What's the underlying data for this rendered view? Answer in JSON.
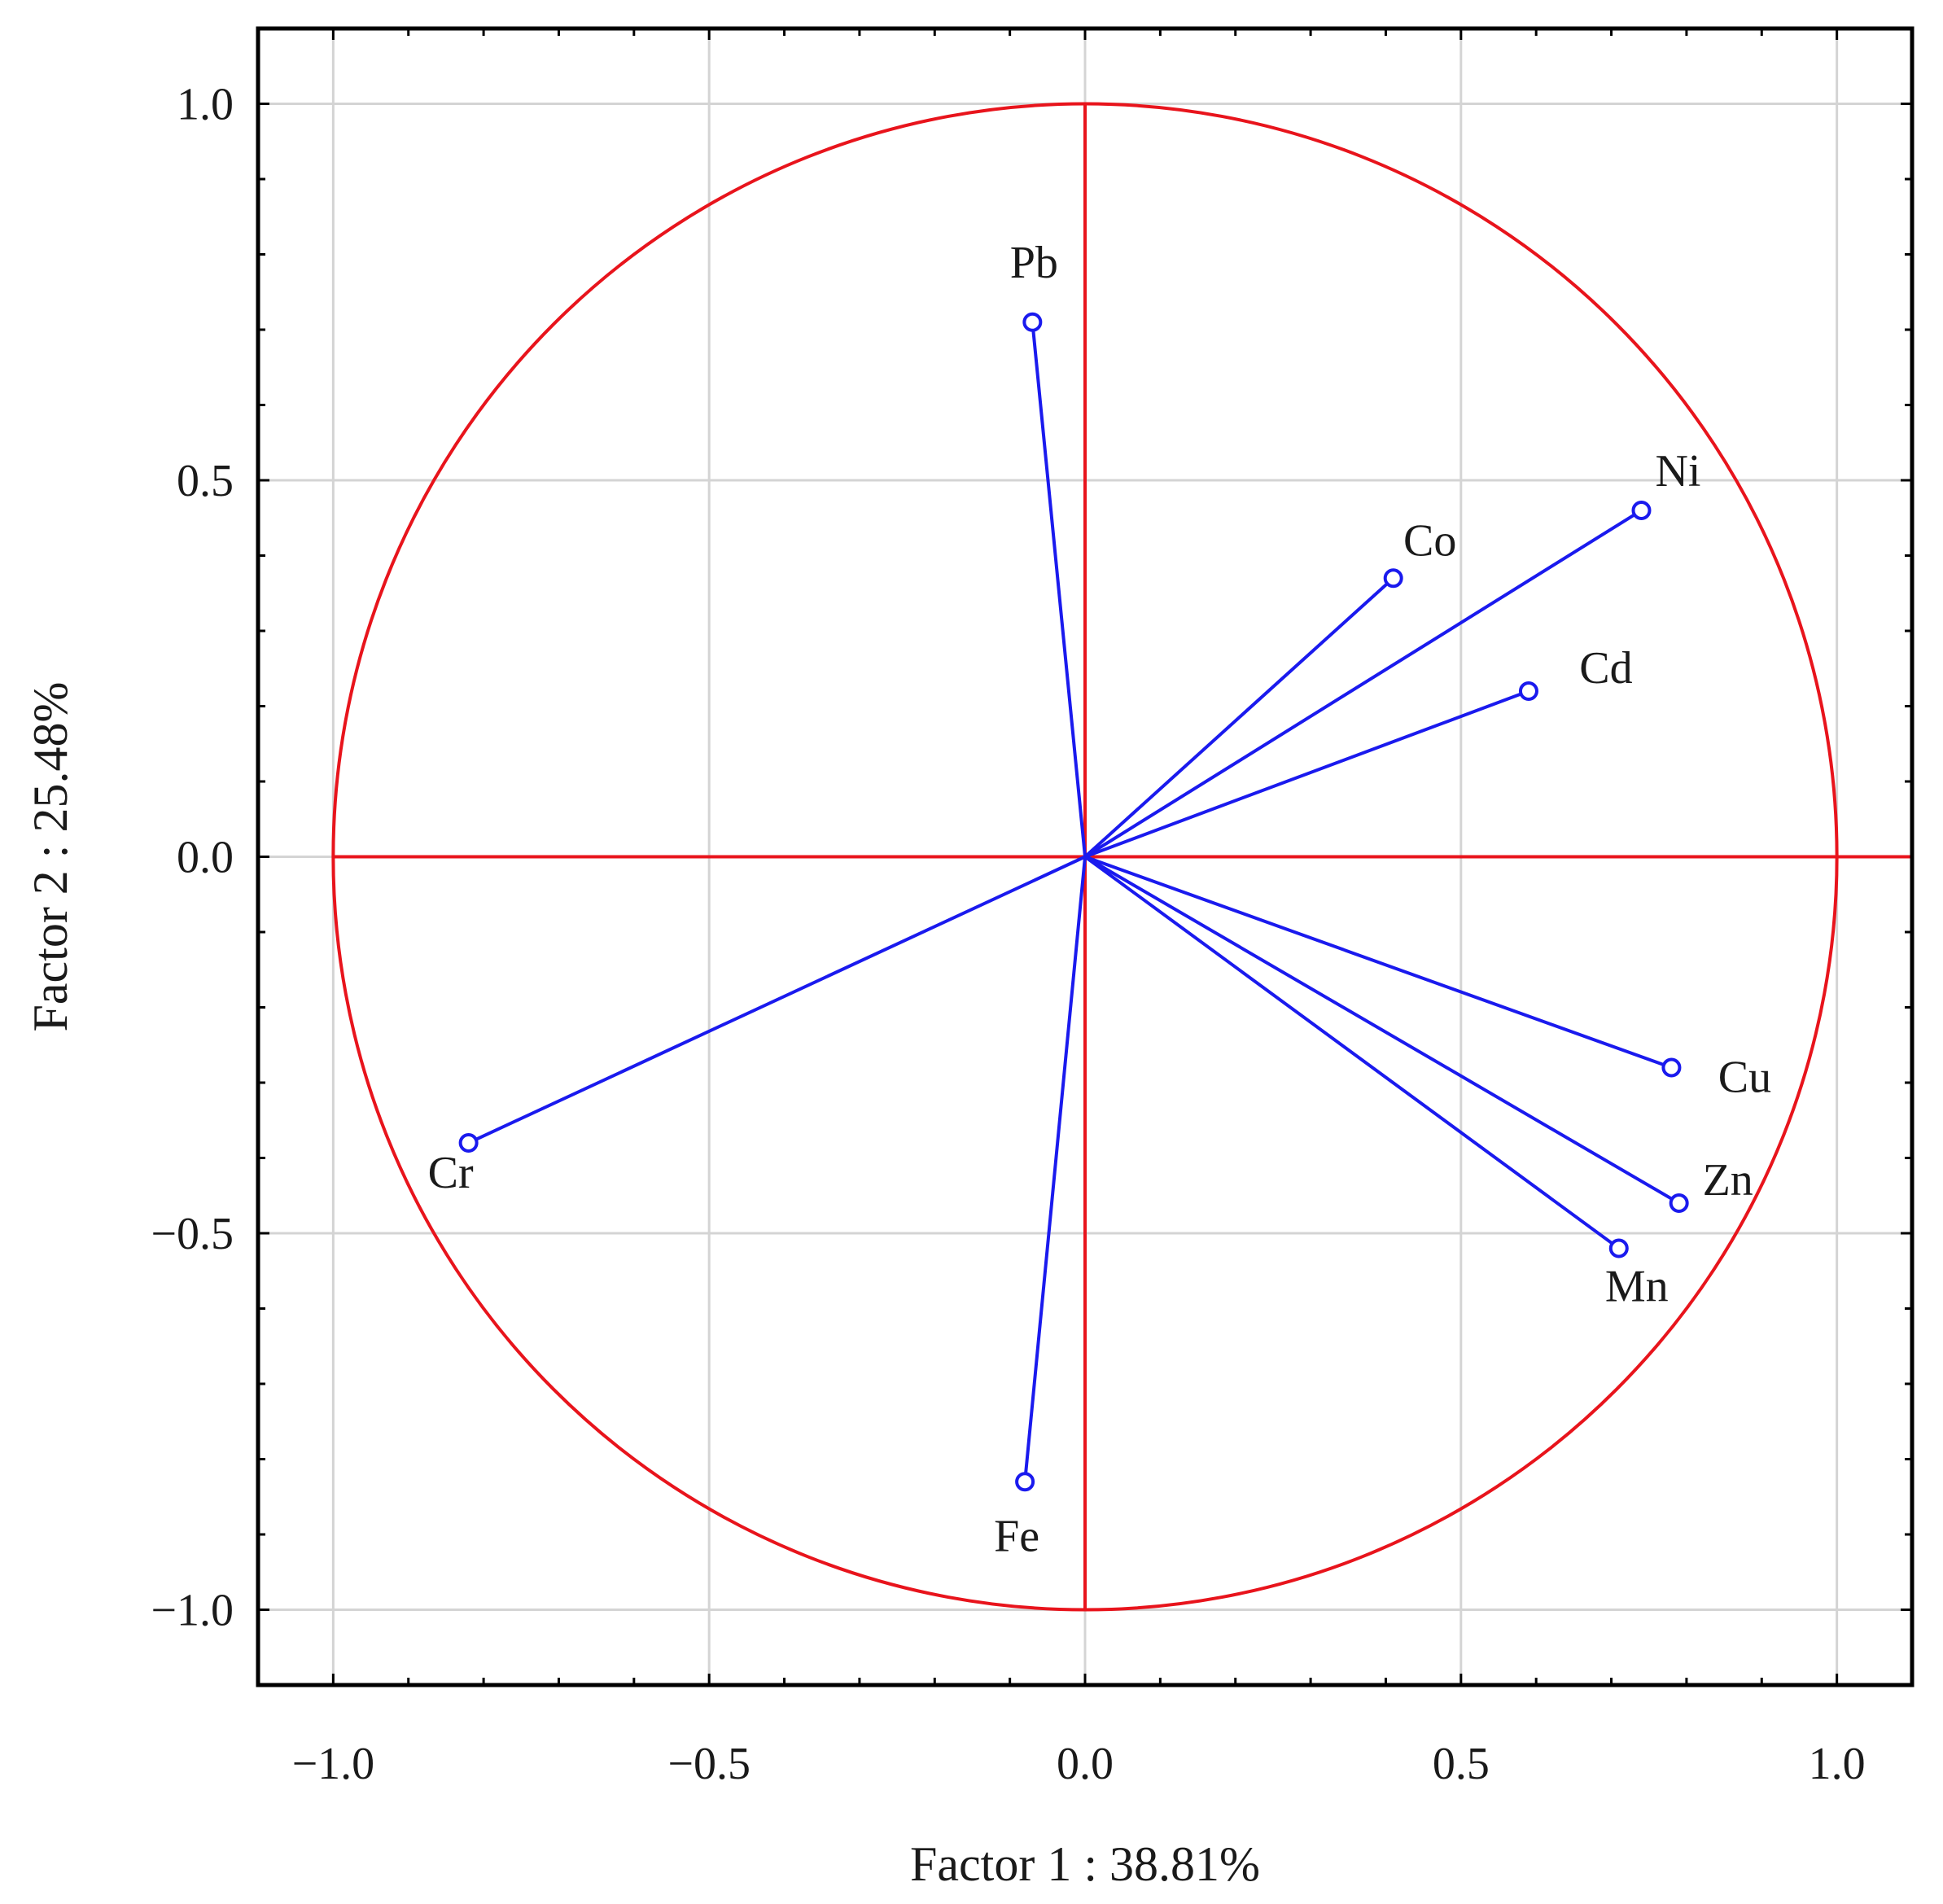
{
  "chart_data": {
    "type": "scatter",
    "subtype": "pca-correlation-circle",
    "xlabel": "Factor 1 : 38.81%",
    "ylabel": "Factor 2 : 25.48%",
    "xlim": [
      -1.1,
      1.1
    ],
    "ylim": [
      -1.1,
      1.1
    ],
    "x_ticks": [
      -1.0,
      -0.5,
      0.0,
      0.5,
      1.0
    ],
    "y_ticks": [
      -1.0,
      -0.5,
      0.0,
      0.5,
      1.0
    ],
    "x_tick_labels": [
      "−1.0",
      "−0.5",
      "0.0",
      "0.5",
      "1.0"
    ],
    "y_tick_labels": [
      "−1.0",
      "−0.5",
      "0.0",
      "0.5",
      "1.0"
    ],
    "grid": true,
    "unit_circle": true,
    "colors": {
      "circle": "#e8141c",
      "vectors": "#1a1aee",
      "grid": "#d4d4d4",
      "axes": "#000000"
    },
    "points": [
      {
        "label": "Pb",
        "x": -0.07,
        "y": 0.71
      },
      {
        "label": "Ni",
        "x": 0.74,
        "y": 0.46
      },
      {
        "label": "Co",
        "x": 0.41,
        "y": 0.37
      },
      {
        "label": "Cd",
        "x": 0.59,
        "y": 0.22
      },
      {
        "label": "Cu",
        "x": 0.78,
        "y": -0.28
      },
      {
        "label": "Zn",
        "x": 0.79,
        "y": -0.46
      },
      {
        "label": "Mn",
        "x": 0.71,
        "y": -0.52
      },
      {
        "label": "Cr",
        "x": -0.82,
        "y": -0.38
      },
      {
        "label": "Fe",
        "x": -0.08,
        "y": -0.83
      }
    ]
  }
}
